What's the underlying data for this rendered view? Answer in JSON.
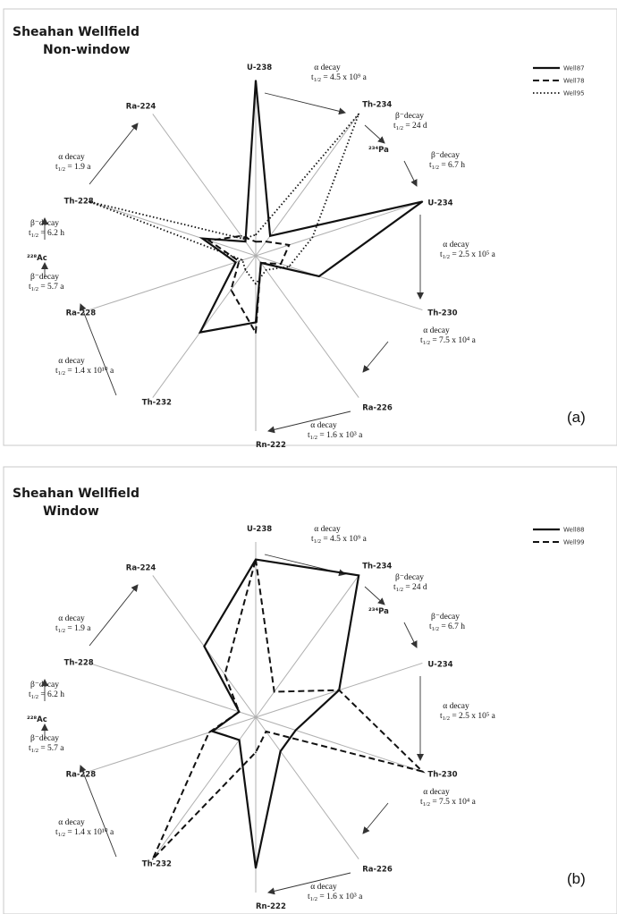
{
  "chart_data": [
    {
      "type": "radar",
      "panel_label": "(a)",
      "title_line1": "Sheahan Wellfield",
      "title_line2": "Non-window",
      "axes": [
        "U-238",
        "Th-234",
        "U-234",
        "Th-230",
        "Ra-226",
        "Rn-222",
        "Th-232",
        "Ra-228",
        "Th-228",
        "Ra-224"
      ],
      "range": [
        0,
        1
      ],
      "series": [
        {
          "name": "Well87",
          "style": "solid",
          "values": [
            1.0,
            0.14,
            1.0,
            0.38,
            0.05,
            0.38,
            0.54,
            0.12,
            0.32,
            0.1
          ]
        },
        {
          "name": "Well78",
          "style": "dashed",
          "values": [
            0.08,
            0.1,
            0.2,
            0.15,
            0.05,
            0.44,
            0.24,
            0.1,
            0.28,
            0.14
          ]
        },
        {
          "name": "Well95",
          "style": "dotted",
          "values": [
            0.12,
            1.0,
            0.34,
            0.2,
            0.1,
            0.16,
            0.1,
            0.08,
            1.0,
            0.12
          ]
        }
      ],
      "decay_notes": [
        {
          "id": "u238-th234",
          "line1": "α decay",
          "line2": "t",
          "sub": "1/2",
          "tail": " = 4.5 x 10⁹ a"
        },
        {
          "id": "th234-pa234",
          "line1": "β⁻decay",
          "line2": "t",
          "sub": "1/2",
          "tail": " = 24 d"
        },
        {
          "id": "pa234-u234",
          "line1": "β⁻decay",
          "line2": "t",
          "sub": "1/2",
          "tail": " = 6.7 h"
        },
        {
          "id": "u234-th230",
          "line1": "α decay",
          "line2": "t",
          "sub": "1/2",
          "tail": " = 2.5 x 10⁵ a"
        },
        {
          "id": "th230-ra226",
          "line1": "α decay",
          "line2": "t",
          "sub": "1/2",
          "tail": " = 7.5 x 10⁴ a"
        },
        {
          "id": "ra226-rn222",
          "line1": "α decay",
          "line2": "t",
          "sub": "1/2",
          "tail": " = 1.6 x 10³ a"
        },
        {
          "id": "th232-ra228",
          "line1": "α decay",
          "line2": "t",
          "sub": "1/2",
          "tail": " = 1.4 x 10¹⁰ a"
        },
        {
          "id": "ra228-ac228",
          "line1": "β⁻decay",
          "line2": "t",
          "sub": "1/2",
          "tail": " = 5.7 a"
        },
        {
          "id": "ac228-th228",
          "line1": "β⁻decay",
          "line2": "t",
          "sub": "1/2",
          "tail": " = 6.2 h"
        },
        {
          "id": "th228-ra224",
          "line1": "α decay",
          "line2": "t",
          "sub": "1/2",
          "tail": " = 1.9 a"
        }
      ],
      "intermediate_labels": {
        "pa": "²³⁴Pa",
        "ac": "²²⁸Ac"
      }
    },
    {
      "type": "radar",
      "panel_label": "(b)",
      "title_line1": "Sheahan Wellfield",
      "title_line2": "Window",
      "axes": [
        "U-238",
        "Th-234",
        "U-234",
        "Th-230",
        "Ra-226",
        "Rn-222",
        "Th-232",
        "Ra-228",
        "Th-228",
        "Ra-224"
      ],
      "range": [
        0,
        1
      ],
      "series": [
        {
          "name": "Well88",
          "style": "solid",
          "values": [
            0.9,
            1.0,
            0.5,
            0.24,
            0.24,
            0.86,
            0.16,
            0.26,
            0.1,
            0.5
          ]
        },
        {
          "name": "Well99",
          "style": "dashed",
          "values": [
            0.9,
            0.18,
            0.5,
            1.0,
            0.1,
            0.2,
            1.0,
            0.28,
            0.1,
            0.3
          ]
        }
      ],
      "decay_notes": [
        {
          "id": "u238-th234",
          "line1": "α decay",
          "line2": "t",
          "sub": "1/2",
          "tail": " = 4.5 x 10⁹ a"
        },
        {
          "id": "th234-pa234",
          "line1": "β⁻decay",
          "line2": "t",
          "sub": "1/2",
          "tail": " = 24 d"
        },
        {
          "id": "pa234-u234",
          "line1": "β⁻decay",
          "line2": "t",
          "sub": "1/2",
          "tail": " = 6.7 h"
        },
        {
          "id": "u234-th230",
          "line1": "α decay",
          "line2": "t",
          "sub": "1/2",
          "tail": " = 2.5 x 10⁵ a"
        },
        {
          "id": "th230-ra226",
          "line1": "α decay",
          "line2": "t",
          "sub": "1/2",
          "tail": " = 7.5 x 10⁴ a"
        },
        {
          "id": "ra226-rn222",
          "line1": "α decay",
          "line2": "t",
          "sub": "1/2",
          "tail": " = 1.6 x 10³ a"
        },
        {
          "id": "th232-ra228",
          "line1": "α decay",
          "line2": "t",
          "sub": "1/2",
          "tail": " = 1.4 x 10¹⁰ a"
        },
        {
          "id": "ra228-ac228",
          "line1": "β⁻decay",
          "line2": "t",
          "sub": "1/2",
          "tail": " = 5.7 a"
        },
        {
          "id": "ac228-th228",
          "line1": "β⁻decay",
          "line2": "t",
          "sub": "1/2",
          "tail": " = 6.2 h"
        },
        {
          "id": "th228-ra224",
          "line1": "α decay",
          "line2": "t",
          "sub": "1/2",
          "tail": " = 1.9 a"
        }
      ],
      "intermediate_labels": {
        "pa": "²³⁴Pa",
        "ac": "²²⁸Ac"
      }
    }
  ]
}
